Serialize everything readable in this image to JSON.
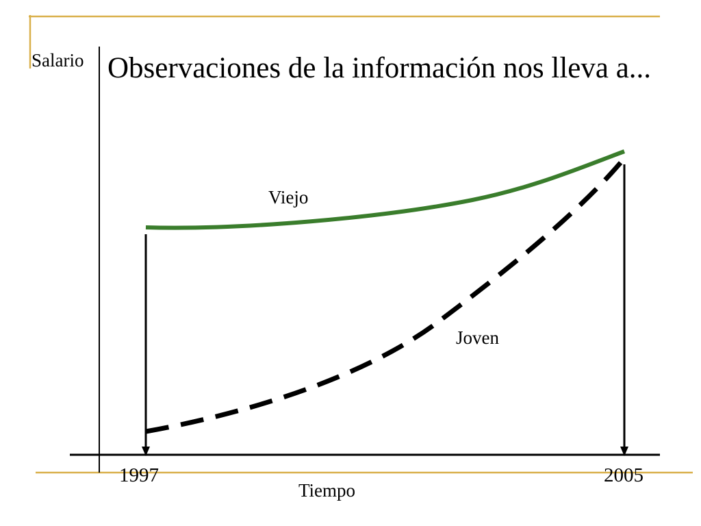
{
  "slide": {
    "title": "Observaciones de la información nos lleva a..."
  },
  "axes": {
    "y_label": "Salario",
    "x_label": "Tiempo"
  },
  "ticks": {
    "start": "1997",
    "end": "2005"
  },
  "curves": {
    "viejo": {
      "label": "Viejo",
      "color": "#3a7d2c",
      "style": "solid"
    },
    "joven": {
      "label": "Joven",
      "color": "#000000",
      "style": "dashed"
    }
  },
  "decoration": {
    "accent_color": "#d9b04a"
  }
}
